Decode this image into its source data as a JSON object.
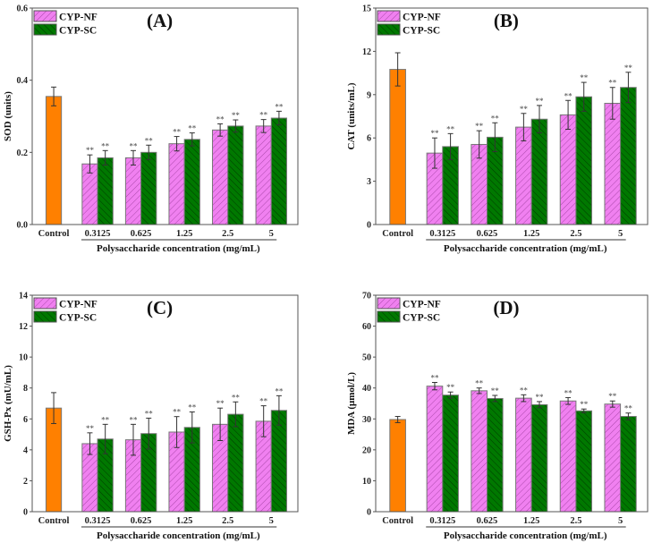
{
  "colors": {
    "control": "#ff8000",
    "nf": "#f080f0",
    "sc": "#007800",
    "nf_hatch": "#9a3a9a",
    "sc_hatch": "#003300"
  },
  "chart_data": [
    {
      "type": "bar",
      "title": "(A)",
      "ylabel": "SOD (units)",
      "xlabel": "Polysaccharide concentration (mg/mL)",
      "ylim": [
        0,
        0.6
      ],
      "yticks": [
        "0.0",
        "0.2",
        "0.4",
        "0.6"
      ],
      "ytick_values": [
        0,
        0.2,
        0.4,
        0.6
      ],
      "control": {
        "label": "Control",
        "value": 0.355,
        "err": 0.026
      },
      "categories": [
        "0.3125",
        "0.625",
        "1.25",
        "2.5",
        "5"
      ],
      "significance": "**",
      "series": [
        {
          "name": "CYP-NF",
          "values": [
            0.168,
            0.185,
            0.224,
            0.262,
            0.273
          ],
          "err": [
            0.025,
            0.02,
            0.02,
            0.017,
            0.018
          ]
        },
        {
          "name": "CYP-SC",
          "values": [
            0.185,
            0.2,
            0.236,
            0.273,
            0.295
          ],
          "err": [
            0.02,
            0.02,
            0.018,
            0.017,
            0.019
          ]
        }
      ],
      "legend": "top-left"
    },
    {
      "type": "bar",
      "title": "(B)",
      "ylabel": "CAT (units/mL)",
      "xlabel": "Polysaccharide concentration (mg/mL)",
      "ylim": [
        0,
        15
      ],
      "yticks": [
        "0",
        "3",
        "6",
        "9",
        "12",
        "15"
      ],
      "ytick_values": [
        0,
        3,
        6,
        9,
        12,
        15
      ],
      "control": {
        "label": "Control",
        "value": 10.75,
        "err": 1.15
      },
      "categories": [
        "0.3125",
        "0.625",
        "1.25",
        "2.5",
        "5"
      ],
      "significance": "**",
      "series": [
        {
          "name": "CYP-NF",
          "values": [
            4.95,
            5.55,
            6.75,
            7.6,
            8.4
          ],
          "err": [
            1.05,
            0.95,
            0.95,
            1.0,
            1.1
          ]
        },
        {
          "name": "CYP-SC",
          "values": [
            5.4,
            6.05,
            7.3,
            8.85,
            9.5
          ],
          "err": [
            0.9,
            1.0,
            0.95,
            1.0,
            1.05
          ]
        }
      ],
      "legend": "top-left"
    },
    {
      "type": "bar",
      "title": "(C)",
      "ylabel": "GSH-Px (mU/mL)",
      "xlabel": "Polysaccharide concentration (mg/mL)",
      "ylim": [
        0,
        14
      ],
      "yticks": [
        "0",
        "2",
        "4",
        "6",
        "8",
        "10",
        "12",
        "14"
      ],
      "ytick_values": [
        0,
        2,
        4,
        6,
        8,
        10,
        12,
        14
      ],
      "control": {
        "label": "Control",
        "value": 6.7,
        "err": 1.0
      },
      "categories": [
        "0.3125",
        "0.625",
        "1.25",
        "2.5",
        "5"
      ],
      "significance": "**",
      "series": [
        {
          "name": "CYP-NF",
          "values": [
            4.4,
            4.65,
            5.15,
            5.65,
            5.85
          ],
          "err": [
            0.7,
            1.0,
            1.0,
            1.05,
            1.0
          ]
        },
        {
          "name": "CYP-SC",
          "values": [
            4.7,
            5.05,
            5.45,
            6.3,
            6.55
          ],
          "err": [
            0.95,
            1.0,
            1.0,
            0.8,
            0.95
          ]
        }
      ],
      "legend": "top-left"
    },
    {
      "type": "bar",
      "title": "(D)",
      "ylabel": "MDA (μmol/L)",
      "xlabel": "Polysaccharide concentration (mg/mL)",
      "ylim": [
        0,
        70
      ],
      "yticks": [
        "0",
        "10",
        "20",
        "30",
        "40",
        "50",
        "60",
        "70"
      ],
      "ytick_values": [
        0,
        10,
        20,
        30,
        40,
        50,
        60,
        70
      ],
      "control": {
        "label": "Control",
        "value": 29.8,
        "err": 1.0
      },
      "categories": [
        "0.3125",
        "0.625",
        "1.25",
        "2.5",
        "5"
      ],
      "significance": "**",
      "series": [
        {
          "name": "CYP-NF",
          "values": [
            40.6,
            39.1,
            36.7,
            35.8,
            34.8
          ],
          "err": [
            1.2,
            0.9,
            1.1,
            1.1,
            1.0
          ]
        },
        {
          "name": "CYP-SC",
          "values": [
            37.7,
            36.6,
            34.6,
            32.6,
            30.8
          ],
          "err": [
            1.0,
            1.0,
            1.0,
            0.6,
            1.1
          ]
        }
      ],
      "legend": "top-left"
    }
  ]
}
